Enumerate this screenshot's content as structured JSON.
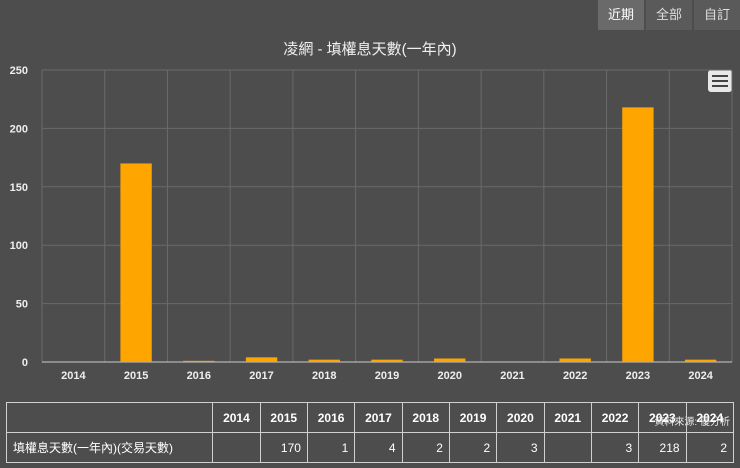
{
  "tabs": [
    "近期",
    "全部",
    "自訂"
  ],
  "colors": {
    "bar": "#ffa500",
    "grid": "#6a6a6a",
    "background": "#4d4d4d"
  },
  "credit": "資料來源: 優分析",
  "menu_icon": "hamburger-menu-icon",
  "chart_data": {
    "type": "bar",
    "title": "凌網 - 填權息天數(一年內)",
    "categories": [
      "2014",
      "2015",
      "2016",
      "2017",
      "2018",
      "2019",
      "2020",
      "2021",
      "2022",
      "2023",
      "2024"
    ],
    "values": [
      null,
      170,
      1,
      4,
      2,
      2,
      3,
      null,
      3,
      218,
      2
    ],
    "ylim": [
      0,
      250
    ],
    "yticks": [
      0,
      50,
      100,
      150,
      200,
      250
    ],
    "grid": true
  },
  "table": {
    "row_label": "填權息天數(一年內)(交易天數)",
    "cells": [
      "",
      "170",
      "1",
      "4",
      "2",
      "2",
      "3",
      "",
      "3",
      "218",
      "2"
    ]
  }
}
